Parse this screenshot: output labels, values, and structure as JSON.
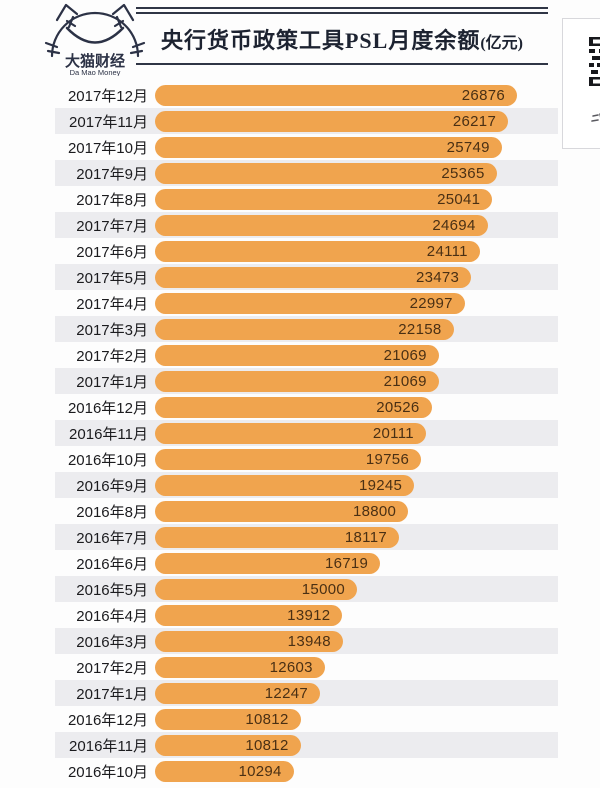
{
  "brand": {
    "name_cn": "大猫财经",
    "name_en": "Da Mao Money"
  },
  "header": {
    "title": "央行货币政策工具PSL月度余额",
    "title_unit": "(亿元)"
  },
  "chart_data": {
    "type": "bar",
    "orientation": "horizontal",
    "title": "央行货币政策工具PSL月度余额",
    "unit": "亿元",
    "categories": [
      "2017年12月",
      "2017年11月",
      "2017年10月",
      "2017年9月",
      "2017年8月",
      "2017年7月",
      "2017年6月",
      "2017年5月",
      "2017年4月",
      "2017年3月",
      "2017年2月",
      "2017年1月",
      "2016年12月",
      "2016年11月",
      "2016年10月",
      "2016年9月",
      "2016年8月",
      "2016年7月",
      "2016年6月",
      "2016年5月",
      "2016年4月",
      "2016年3月",
      "2017年2月",
      "2017年1月",
      "2016年12月",
      "2016年11月",
      "2016年10月"
    ],
    "values": [
      26876,
      26217,
      25749,
      25365,
      25041,
      24694,
      24111,
      23473,
      22997,
      22158,
      21069,
      21069,
      20526,
      20111,
      19756,
      19245,
      18800,
      18117,
      16719,
      15000,
      13912,
      13948,
      12603,
      12247,
      10812,
      10812,
      10294
    ],
    "xlim": [
      0,
      27000
    ],
    "value_labels": true,
    "grid": false,
    "legend": false,
    "bar_color": "#F0A44E",
    "value_color": "#4A3014",
    "stripe_color": "#ECECEF",
    "label_color": "#1B1B1E"
  }
}
